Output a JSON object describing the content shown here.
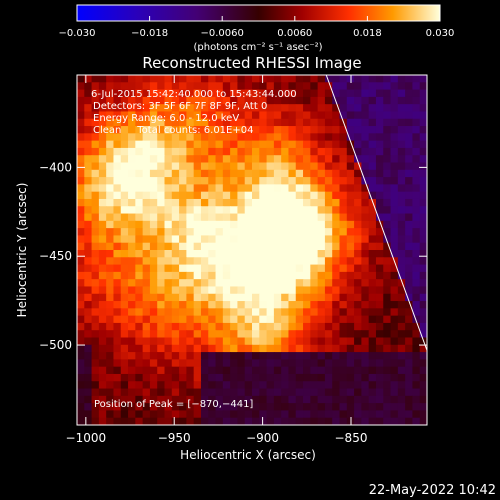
{
  "chart_data": {
    "type": "heatmap",
    "title": "Reconstructed RHESSI Image",
    "xlabel": "Heliocentric X (arcsec)",
    "ylabel": "Heliocentric Y (arcsec)",
    "xlim": [
      -1005,
      -807
    ],
    "ylim": [
      -545,
      -348
    ],
    "x_ticks": [
      -1000,
      -950,
      -900,
      -850
    ],
    "x_tick_labels": [
      "−1000",
      "−950",
      "−900",
      "−850"
    ],
    "y_ticks": [
      -400,
      -450,
      -500
    ],
    "y_tick_labels": [
      "−400",
      "−450",
      "−500"
    ],
    "colorbar": {
      "min": -0.03,
      "max": 0.03,
      "ticks": [
        -0.03,
        -0.018,
        -0.006,
        0.006,
        0.018,
        0.03
      ],
      "tick_labels": [
        "−0.030",
        "−0.018",
        "−0.0060",
        "0.0060",
        "0.018",
        "0.030"
      ],
      "unit_label": "(photons cm⁻² s⁻¹ asec⁻²)"
    },
    "annotations": [
      "6-Jul-2015 15:42:40.000 to 15:43:44.000",
      "Detectors: 3F 5F 6F 7F 8F 9F, Att 0",
      "Energy Range: 6.0 - 12.0 keV",
      "Clean     Total counts: 6.01E+04"
    ],
    "peak_label": "Position of Peak = [−870,−441]",
    "peak": [
      -870,
      -441
    ],
    "sources": [
      {
        "x": -880,
        "y": -438,
        "amp": 0.03
      },
      {
        "x": -935,
        "y": -438,
        "amp": 0.02
      },
      {
        "x": -985,
        "y": -415,
        "amp": 0.016
      },
      {
        "x": -970,
        "y": -393,
        "amp": 0.016
      },
      {
        "x": -895,
        "y": -398,
        "amp": 0.015
      },
      {
        "x": -905,
        "y": -468,
        "amp": 0.015
      },
      {
        "x": -900,
        "y": -500,
        "amp": 0.013
      },
      {
        "x": -955,
        "y": -480,
        "amp": 0.011
      },
      {
        "x": -940,
        "y": -372,
        "amp": 0.01
      },
      {
        "x": -990,
        "y": -460,
        "amp": 0.008
      }
    ],
    "limb_line": [
      [
        -864,
        -348
      ],
      [
        -807,
        -503
      ]
    ]
  },
  "footer": {
    "date": "22-May-2022 10:42"
  }
}
